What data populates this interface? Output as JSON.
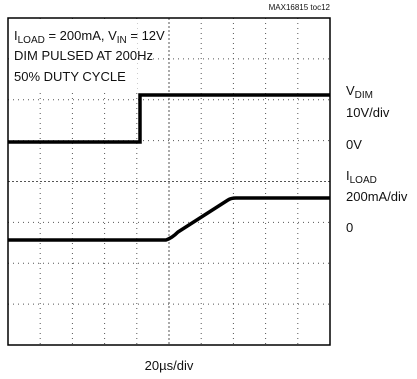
{
  "figure_id": "MAX16815 toc12",
  "annotation": {
    "line1": {
      "i": "I",
      "i_sub": "LOAD",
      "mid": " = 200mA, V",
      "v_sub": "IN",
      "end": " = 12V"
    },
    "line2": "DIM PULSED AT 200Hz",
    "line3": "50% DUTY CYCLE"
  },
  "channel1": {
    "name": "V",
    "name_sub": "DIM",
    "scale": "10V/div",
    "zero": "0V"
  },
  "channel2": {
    "name": "I",
    "name_sub": "LOAD",
    "scale": "200mA/div",
    "zero": "0"
  },
  "timebase": "20µs/div"
}
